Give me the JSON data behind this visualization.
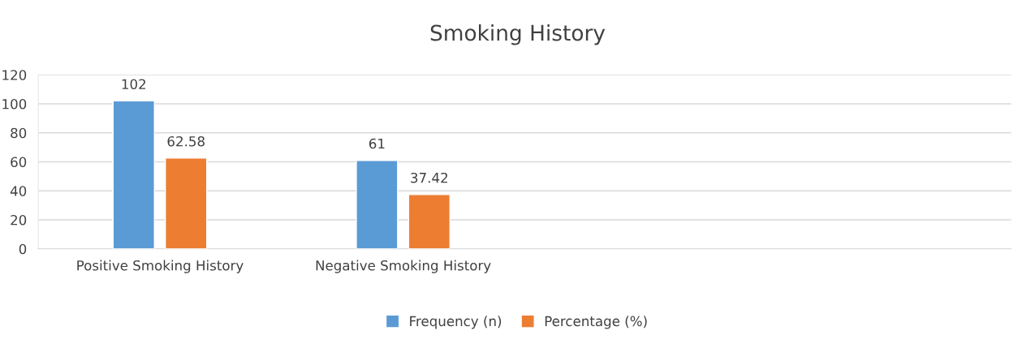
{
  "chart_data": {
    "type": "bar",
    "title": "Smoking History",
    "categories": [
      "Positive Smoking History",
      "Negative Smoking History",
      null,
      null
    ],
    "series": [
      {
        "name": "Frequency (n)",
        "color": "#5b9bd5",
        "values": [
          102,
          61,
          null,
          null
        ]
      },
      {
        "name": "Percentage (%)",
        "color": "#ed7d31",
        "values": [
          62.58,
          37.42,
          null,
          null
        ]
      }
    ],
    "ylim": [
      0,
      120
    ],
    "yticks": [
      0,
      20,
      40,
      60,
      80,
      100,
      120
    ],
    "grid": "y",
    "legend": "bottom",
    "data_labels": true
  }
}
